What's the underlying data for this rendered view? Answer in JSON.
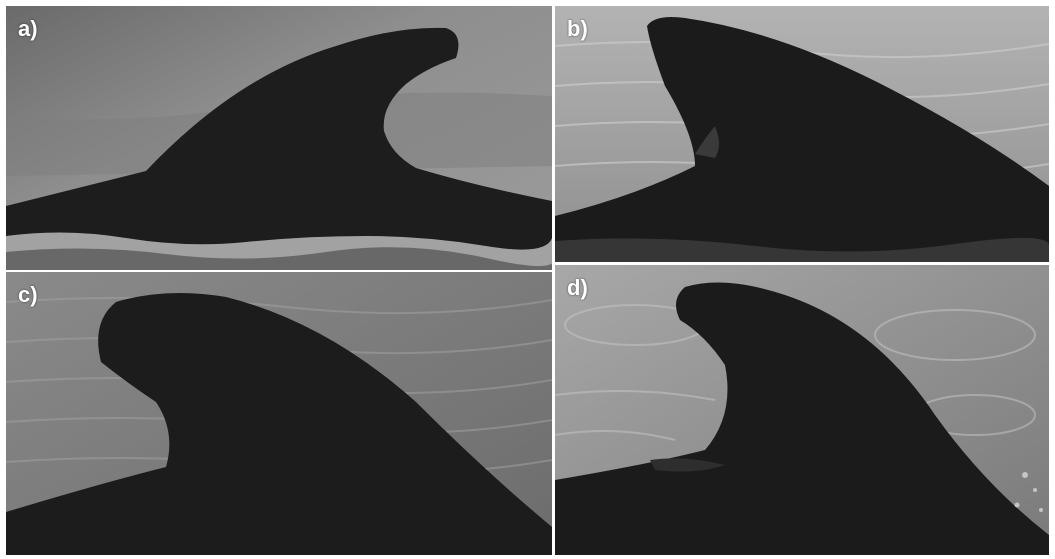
{
  "panels": [
    {
      "id": "a",
      "label": "a)"
    },
    {
      "id": "b",
      "label": "b)"
    },
    {
      "id": "c",
      "label": "c)"
    },
    {
      "id": "d",
      "label": "d)"
    }
  ],
  "colors": {
    "fin": "#1c1c1c",
    "water_light": "#9a9a9a",
    "water_dark": "#6e6e6e",
    "foam": "#d8d8d8",
    "border": "#ffffff"
  }
}
